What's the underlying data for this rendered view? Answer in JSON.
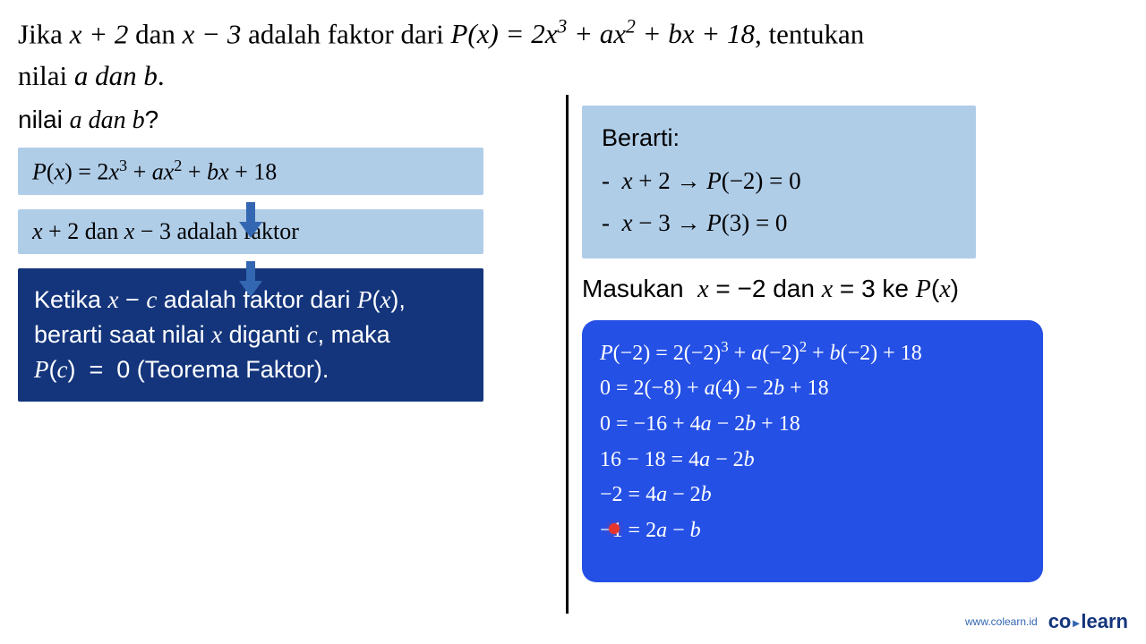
{
  "colors": {
    "lightBox": "#b0cde8",
    "darkBox": "#14357c",
    "blueBox": "#2550e5",
    "arrow": "#3367b1",
    "background": "#ffffff",
    "text": "#000000",
    "whiteText": "#ffffff",
    "marker": "#e8362e"
  },
  "question": {
    "line1_prefix": "Jika ",
    "line1_factor1": "x + 2",
    "line1_mid1": " dan ",
    "line1_factor2": "x − 3",
    "line1_mid2": " adalah faktor dari ",
    "line1_poly": "P(x) = 2x³ + ax² + bx + 18",
    "line1_suffix": ", tentukan",
    "line2_prefix": "nilai ",
    "line2_vars": "a dan b",
    "line2_suffix": "."
  },
  "left": {
    "prompt_prefix": "nilai ",
    "prompt_vars": "a dan b",
    "prompt_suffix": "?",
    "box1": "P(x) = 2x³ + ax² + bx + 18",
    "box2": "x + 2 dan x − 3 adalah faktor",
    "box3_l1": "Ketika x − c adalah faktor dari",
    "box3_l2": "P(x), berarti saat nilai x diganti c,",
    "box3_l3": "maka P(c)  =  0 (Teorema Faktor)."
  },
  "right": {
    "box1_title": "Berarti:",
    "box1_i1": "-  x + 2 → P(−2) = 0",
    "box1_i2": "-  x − 3 → P(3) = 0",
    "instruction": "Masukan  x = −2 dan x = 3 ke P(x)",
    "calc_l1": "P(−2) = 2(−2)³ + a(−2)² + b(−2) + 18",
    "calc_l2": "0 = 2(−8) + a(4) − 2b + 18",
    "calc_l3": "0 = −16 + 4a − 2b + 18",
    "calc_l4": "16 − 18 = 4a − 2b",
    "calc_l5": "−2 = 4a − 2b",
    "calc_l6": "−1 = 2a − b"
  },
  "footer": {
    "url": "www.colearn.id",
    "logo_co": "co",
    "logo_learn": "learn"
  }
}
